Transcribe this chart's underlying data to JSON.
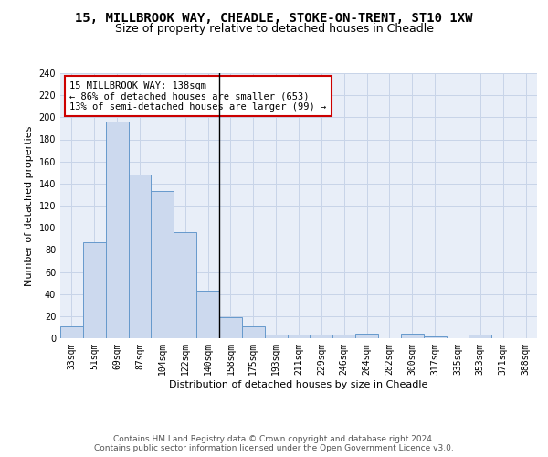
{
  "title": "15, MILLBROOK WAY, CHEADLE, STOKE-ON-TRENT, ST10 1XW",
  "subtitle": "Size of property relative to detached houses in Cheadle",
  "xlabel": "Distribution of detached houses by size in Cheadle",
  "ylabel": "Number of detached properties",
  "categories": [
    "33sqm",
    "51sqm",
    "69sqm",
    "87sqm",
    "104sqm",
    "122sqm",
    "140sqm",
    "158sqm",
    "175sqm",
    "193sqm",
    "211sqm",
    "229sqm",
    "246sqm",
    "264sqm",
    "282sqm",
    "300sqm",
    "317sqm",
    "335sqm",
    "353sqm",
    "371sqm",
    "388sqm"
  ],
  "values": [
    11,
    87,
    196,
    148,
    133,
    96,
    43,
    19,
    11,
    3,
    3,
    3,
    3,
    4,
    0,
    4,
    2,
    0,
    3,
    0,
    0
  ],
  "bar_color": "#ccd9ee",
  "bar_edge_color": "#6699cc",
  "highlight_bar_index": 6,
  "highlight_line_color": "#000000",
  "annotation_text": "15 MILLBROOK WAY: 138sqm\n← 86% of detached houses are smaller (653)\n13% of semi-detached houses are larger (99) →",
  "annotation_box_color": "#ffffff",
  "annotation_box_edge": "#cc0000",
  "ylim": [
    0,
    240
  ],
  "yticks": [
    0,
    20,
    40,
    60,
    80,
    100,
    120,
    140,
    160,
    180,
    200,
    220,
    240
  ],
  "grid_color": "#c8d4e8",
  "background_color": "#e8eef8",
  "footer_text": "Contains HM Land Registry data © Crown copyright and database right 2024.\nContains public sector information licensed under the Open Government Licence v3.0.",
  "title_fontsize": 10,
  "subtitle_fontsize": 9,
  "axis_label_fontsize": 8,
  "tick_fontsize": 7,
  "annotation_fontsize": 7.5,
  "footer_fontsize": 6.5
}
